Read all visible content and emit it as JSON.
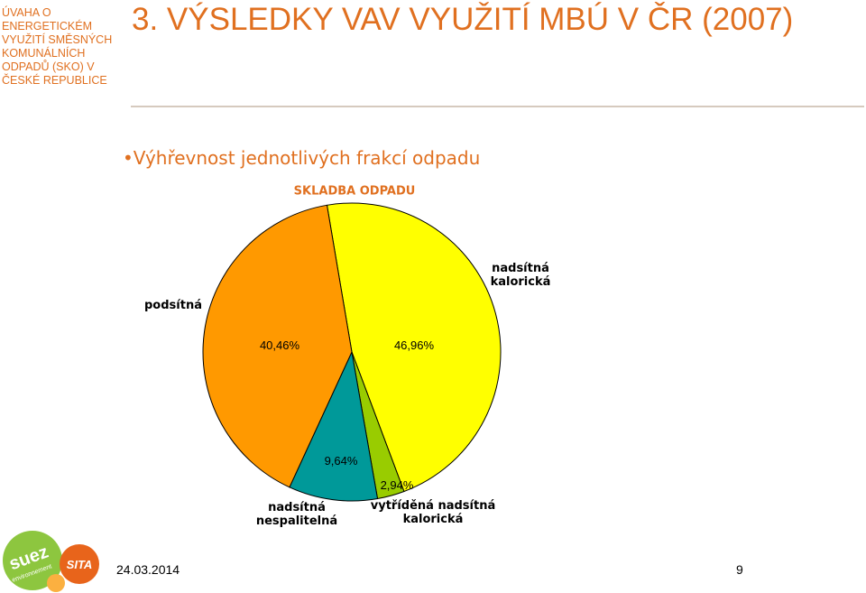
{
  "sidebar": {
    "lines": [
      "ÚVAHA O",
      "ENERGETICKÉM",
      "VYUŽITÍ SMĚSNÝCH",
      "KOMUNÁLNÍCH",
      "ODPADŮ (SKO) V",
      "ČESKÉ REPUBLICE"
    ]
  },
  "header": {
    "title": "3. VÝSLEDKY VAV VYUŽITÍ MBÚ V ČR (2007)"
  },
  "bullet": "Výhřevnost jednotlivých frakcí odpadu",
  "chart_data": {
    "type": "pie",
    "title": "SKLADBA ODPADU",
    "categories": [
      "nadsítná kalorická",
      "vytříděná nadsítná kalorická",
      "nadsítná nespalitelná",
      "podsítná"
    ],
    "values": [
      46.96,
      2.94,
      9.64,
      40.46
    ],
    "value_labels": [
      "46,96%",
      "2,94%",
      "9,64%",
      "40,46%"
    ],
    "colors": [
      "#ffff00",
      "#99cc00",
      "#009999",
      "#ff9900"
    ]
  },
  "footer": {
    "date": "24.03.2014",
    "page": "9",
    "logo_suez": "suez",
    "logo_env": "environnement",
    "logo_sita": "SITA"
  }
}
